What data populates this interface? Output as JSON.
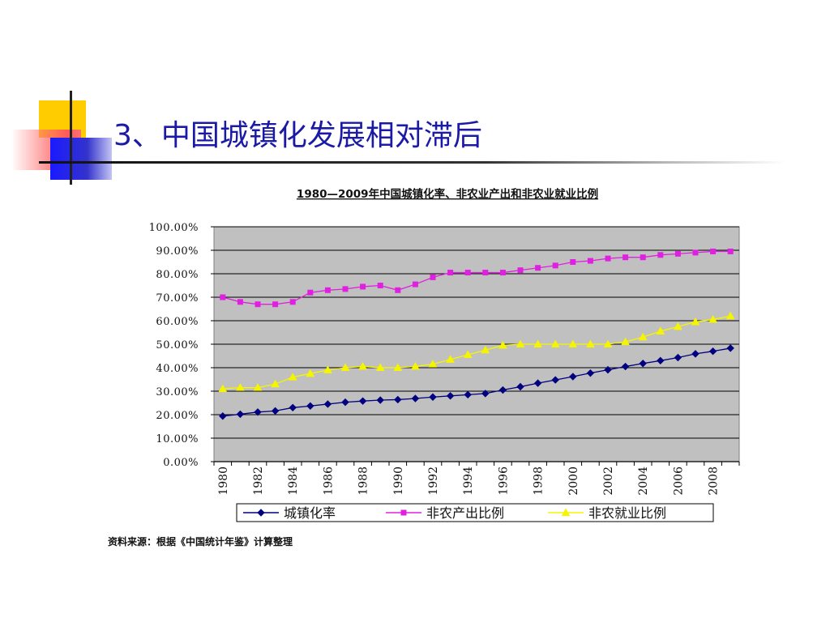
{
  "slide": {
    "title": "3、中国城镇化发展相对滞后",
    "source_note": "资料来源：根据《中国统计年鉴》计算整理"
  },
  "colors": {
    "title": "#1a1aa6",
    "plot_bg": "#c0c0c0",
    "urban": "#000080",
    "nonagri_output": "#e020e0",
    "nonagri_employment": "#f5f500"
  },
  "chart_data": {
    "type": "line",
    "title": "1980—2009年中国城镇化率、非农业产出和非农业就业比例",
    "xlabel": "",
    "ylabel": "",
    "x": [
      1980,
      1981,
      1982,
      1983,
      1984,
      1985,
      1986,
      1987,
      1988,
      1989,
      1990,
      1991,
      1992,
      1993,
      1994,
      1995,
      1996,
      1997,
      1998,
      1999,
      2000,
      2001,
      2002,
      2003,
      2004,
      2005,
      2006,
      2007,
      2008,
      2009
    ],
    "x_tick_labels": [
      "1980",
      "1982",
      "1984",
      "1986",
      "1988",
      "1990",
      "1992",
      "1994",
      "1996",
      "1998",
      "2000",
      "2002",
      "2004",
      "2006",
      "2008"
    ],
    "ylim": [
      0,
      100
    ],
    "y_tick_labels": [
      "0.00%",
      "10.00%",
      "20.00%",
      "30.00%",
      "40.00%",
      "50.00%",
      "60.00%",
      "70.00%",
      "80.00%",
      "90.00%",
      "100.00%"
    ],
    "grid": true,
    "legend_position": "bottom",
    "series": [
      {
        "name": "城镇化率",
        "marker": "diamond",
        "values": [
          19.4,
          20.2,
          21.1,
          21.6,
          23.0,
          23.7,
          24.5,
          25.3,
          25.8,
          26.2,
          26.4,
          26.9,
          27.5,
          28.0,
          28.5,
          29.0,
          30.5,
          31.9,
          33.4,
          34.8,
          36.2,
          37.7,
          39.1,
          40.5,
          41.8,
          43.0,
          44.3,
          45.9,
          47.0,
          48.3
        ]
      },
      {
        "name": "非农产出比例",
        "marker": "square",
        "values": [
          70.0,
          68.0,
          67.0,
          67.0,
          68.0,
          72.0,
          73.0,
          73.5,
          74.5,
          75.0,
          73.0,
          75.5,
          78.5,
          80.5,
          80.5,
          80.5,
          80.5,
          81.5,
          82.5,
          83.5,
          85.0,
          85.5,
          86.5,
          87.0,
          87.0,
          88.0,
          88.5,
          89.0,
          89.5,
          89.5
        ]
      },
      {
        "name": "非农就业比例",
        "marker": "triangle",
        "values": [
          31.0,
          31.5,
          31.5,
          33.0,
          36.0,
          37.5,
          39.0,
          40.0,
          40.5,
          40.0,
          40.0,
          40.5,
          41.5,
          43.5,
          45.5,
          47.5,
          49.5,
          50.0,
          50.0,
          50.0,
          50.0,
          50.0,
          50.0,
          51.0,
          53.0,
          55.5,
          57.5,
          59.5,
          60.5,
          62.0
        ]
      }
    ]
  }
}
